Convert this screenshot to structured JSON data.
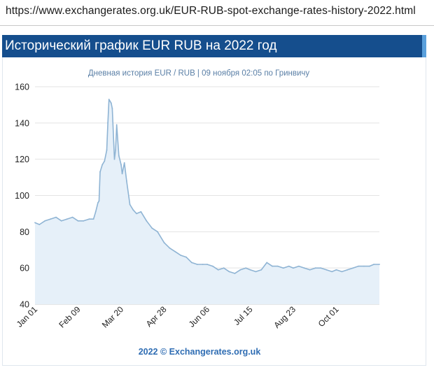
{
  "browser": {
    "url": "https://www.exchangerates.org.uk/EUR-RUB-spot-exchange-rates-history-2022.html"
  },
  "header": {
    "title": "Исторический график EUR RUB на 2022 год"
  },
  "colors": {
    "title_background": "#154e8d",
    "title_accent": "#5aa0dc",
    "line": "#8fb4d4",
    "area_fill": "#e6f0f9",
    "gridline": "#e3e3e3",
    "credit_text": "#2f6db3"
  },
  "chart_data": {
    "type": "area",
    "subtitle": "Дневная история EUR / RUB | 09 ноября 02:05 по Гринвичу",
    "credit": "2022 © Exchangerates.org.uk",
    "xlabel": "",
    "ylabel": "",
    "ylim": [
      40,
      160
    ],
    "yticks": [
      "160",
      "140",
      "120",
      "100",
      "80",
      "60",
      "40"
    ],
    "grid": true,
    "legend": "none",
    "x_tick_labels": [
      "Jan 01",
      "Feb 09",
      "Mar 20",
      "Apr 28",
      "Jun 06",
      "Jul 15",
      "Aug 23",
      "Oct 01"
    ],
    "x_range": [
      "2022-01-01",
      "2022-11-09"
    ],
    "x": [
      "2022-01-01",
      "2022-01-05",
      "2022-01-10",
      "2022-01-15",
      "2022-01-20",
      "2022-01-25",
      "2022-01-30",
      "2022-02-04",
      "2022-02-09",
      "2022-02-14",
      "2022-02-19",
      "2022-02-23",
      "2022-02-25",
      "2022-02-27",
      "2022-02-28",
      "2022-03-01",
      "2022-03-03",
      "2022-03-05",
      "2022-03-07",
      "2022-03-08",
      "2022-03-09",
      "2022-03-10",
      "2022-03-11",
      "2022-03-12",
      "2022-03-14",
      "2022-03-15",
      "2022-03-16",
      "2022-03-18",
      "2022-03-20",
      "2022-03-21",
      "2022-03-23",
      "2022-03-25",
      "2022-03-28",
      "2022-03-31",
      "2022-04-03",
      "2022-04-07",
      "2022-04-12",
      "2022-04-17",
      "2022-04-22",
      "2022-04-28",
      "2022-05-03",
      "2022-05-08",
      "2022-05-13",
      "2022-05-18",
      "2022-05-23",
      "2022-05-28",
      "2022-06-02",
      "2022-06-06",
      "2022-06-11",
      "2022-06-16",
      "2022-06-21",
      "2022-06-26",
      "2022-07-01",
      "2022-07-06",
      "2022-07-11",
      "2022-07-15",
      "2022-07-20",
      "2022-07-25",
      "2022-07-30",
      "2022-08-04",
      "2022-08-09",
      "2022-08-14",
      "2022-08-19",
      "2022-08-23",
      "2022-08-28",
      "2022-09-02",
      "2022-09-07",
      "2022-09-12",
      "2022-09-17",
      "2022-09-22",
      "2022-09-27",
      "2022-10-01",
      "2022-10-06",
      "2022-10-11",
      "2022-10-16",
      "2022-10-21",
      "2022-10-26",
      "2022-10-31",
      "2022-11-04",
      "2022-11-09"
    ],
    "series": [
      {
        "values": [
          85,
          84,
          86,
          87,
          88,
          86,
          87,
          88,
          86,
          86,
          87,
          87,
          91,
          96,
          97,
          113,
          117,
          119,
          125,
          140,
          153,
          152,
          151,
          148,
          120,
          125,
          139,
          122,
          117,
          112,
          118,
          108,
          95,
          92,
          90,
          91,
          86,
          82,
          80,
          74,
          71,
          69,
          67,
          66,
          63,
          62,
          62,
          62,
          61,
          59,
          60,
          58,
          57,
          59,
          60,
          59,
          58,
          59,
          63,
          61,
          61,
          60,
          61,
          60,
          61,
          60,
          59,
          60,
          60,
          59,
          58,
          59,
          58,
          59,
          60,
          61,
          61,
          61,
          62,
          62
        ]
      }
    ]
  }
}
